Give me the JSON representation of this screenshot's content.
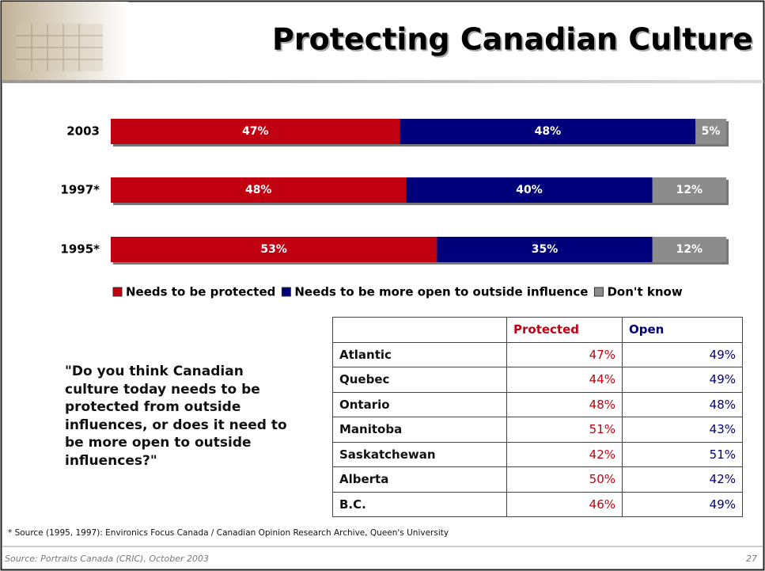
{
  "header": {
    "title": "Protecting Canadian Culture"
  },
  "chart_data": {
    "type": "stacked-bar-horizontal",
    "categories": [
      "2003",
      "1997*",
      "1995*"
    ],
    "xlim": [
      0,
      100
    ],
    "legend": "bottom",
    "series": [
      {
        "name": "Needs to be protected",
        "color": "#c00010",
        "values": [
          47,
          48,
          53
        ],
        "value_labels": [
          "47%",
          "48%",
          "53%"
        ]
      },
      {
        "name": "Needs to be more open to outside influence",
        "color": "#00007a",
        "values": [
          48,
          40,
          35
        ],
        "value_labels": [
          "48%",
          "40%",
          "35%"
        ]
      },
      {
        "name": "Don't know",
        "color": "#8c8c8c",
        "values": [
          5,
          12,
          12
        ],
        "value_labels": [
          "5%",
          "12%",
          "12%"
        ]
      }
    ]
  },
  "question": "\"Do you think Canadian culture today needs to be protected from outside influences, or does it need to be more open to outside influences?\"",
  "table": {
    "columns": [
      "Protected",
      "Open"
    ],
    "rows": [
      [
        "Atlantic",
        "47%",
        "49%"
      ],
      [
        "Quebec",
        "44%",
        "49%"
      ],
      [
        "Ontario",
        "48%",
        "48%"
      ],
      [
        "Manitoba",
        "51%",
        "43%"
      ],
      [
        "Saskatchewan",
        "42%",
        "51%"
      ],
      [
        "Alberta",
        "50%",
        "42%"
      ],
      [
        "B.C.",
        "46%",
        "49%"
      ]
    ]
  },
  "footnote": "* Source (1995, 1997): Environics Focus Canada / Canadian Opinion Research Archive, Queen's University",
  "source": "Source: Portraits Canada (CRIC), October 2003",
  "page_number": "27"
}
